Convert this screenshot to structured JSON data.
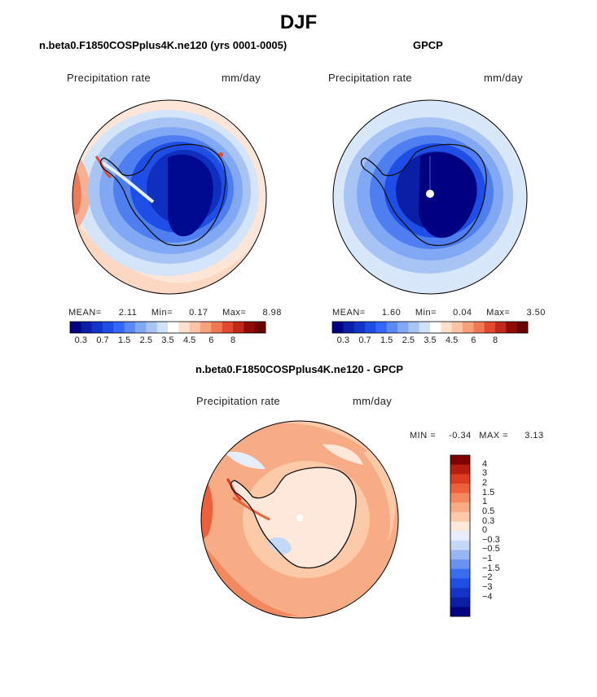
{
  "page": {
    "title": "DJF"
  },
  "panels": {
    "model": {
      "title": "n.beta0.F1850COSPplus4K.ne120 (yrs 0001-0005)",
      "field": "Precipitation rate",
      "units": "mm/day",
      "stats": {
        "mean_label": "MEAN=",
        "mean": "2.11",
        "min_label": "Min=",
        "min": "0.17",
        "max_label": "Max=",
        "max": "8.98"
      }
    },
    "obs": {
      "title": "GPCP",
      "field": "Precipitation rate",
      "units": "mm/day",
      "stats": {
        "mean_label": "MEAN=",
        "mean": "1.60",
        "min_label": "Min=",
        "min": "0.04",
        "max_label": "Max=",
        "max": "3.50"
      }
    },
    "diff": {
      "title": "n.beta0.F1850COSPplus4K.ne120 - GPCP",
      "field": "Precipitation rate",
      "units": "mm/day",
      "stats": {
        "min_label": "MIN =",
        "min": "-0.34",
        "max_label": "MAX =",
        "max": "3.13"
      }
    }
  },
  "colorbars": {
    "abs": {
      "colors": [
        "#000080",
        "#0a1ea6",
        "#1434c8",
        "#1e4ee6",
        "#3366ff",
        "#5a88f5",
        "#80a8f5",
        "#a8c4f5",
        "#d0e2fa",
        "#ffffff",
        "#fde0cc",
        "#fcc3a6",
        "#f8a07c",
        "#f07852",
        "#e2492f",
        "#c0281a",
        "#900a06",
        "#6a0000"
      ],
      "ticks": [
        "0.3",
        "0.7",
        "1.5",
        "2.5",
        "3.5",
        "4.5",
        "6",
        "8"
      ]
    },
    "diff": {
      "colors": [
        "#000080",
        "#0a1ea6",
        "#1434c8",
        "#1e4ee6",
        "#3a6cf0",
        "#6a90f0",
        "#98b6f3",
        "#c4d8f8",
        "#e6eefb",
        "#fde8da",
        "#fccaa9",
        "#f8ac86",
        "#f4895f",
        "#ee6039",
        "#dc3c20",
        "#b31e0e",
        "#7e0202"
      ],
      "ticks": [
        "-4",
        "-3",
        "-2",
        "-1.5",
        "-1",
        "-0.5",
        "-0.3",
        "0",
        "0.3",
        "0.5",
        "1",
        "1.5",
        "2",
        "3",
        "4"
      ]
    }
  }
}
